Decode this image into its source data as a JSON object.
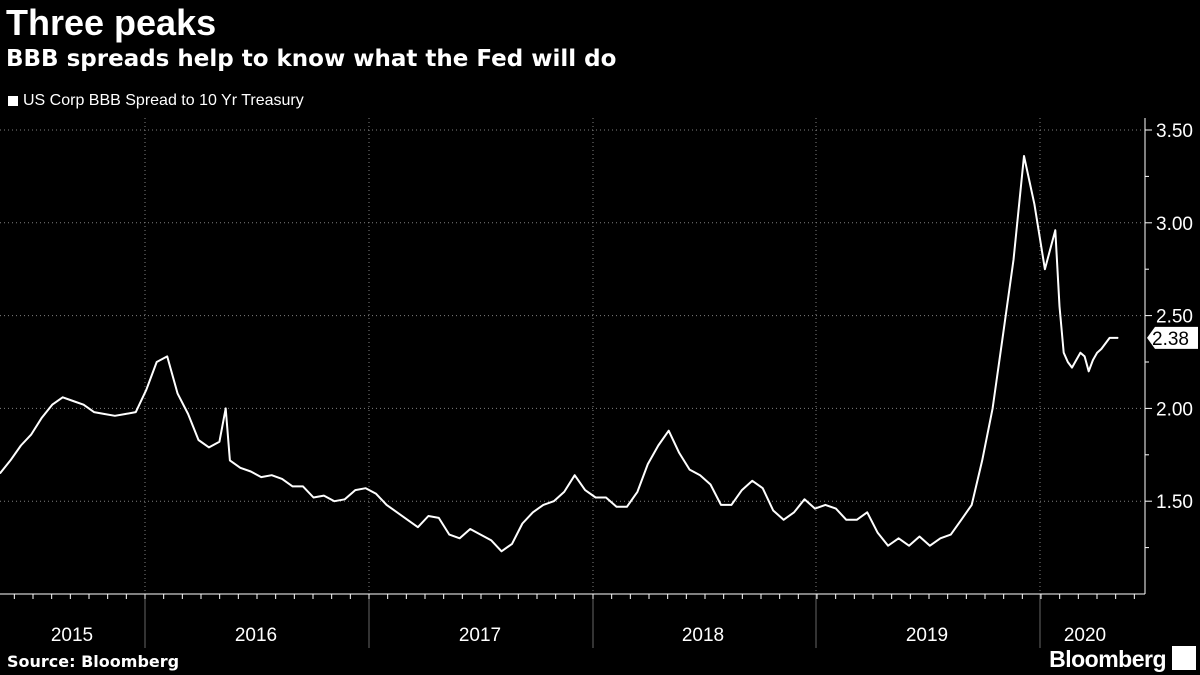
{
  "header": {
    "title": "Three peaks",
    "subtitle": "BBB spreads help to know what the Fed will do"
  },
  "legend": {
    "label": "US Corp BBB Spread to 10 Yr Treasury"
  },
  "footer": {
    "source": "Source: Bloomberg",
    "brand": "Bloomberg"
  },
  "colors": {
    "background": "#000000",
    "line": "#ffffff",
    "grid": "#808080"
  },
  "chart_data": {
    "type": "line",
    "title": "Three peaks",
    "subtitle": "BBB spreads help to know what the Fed will do",
    "xlabel": "",
    "ylabel": "",
    "x_range": [
      2015.0,
      2020.4
    ],
    "ylim": [
      1.0,
      3.55
    ],
    "y_ticks": [
      1.5,
      2.0,
      2.5,
      3.0,
      3.5
    ],
    "y_tick_labels": [
      "1.50",
      "2.00",
      "2.50",
      "3.00",
      "3.50"
    ],
    "x_tick_labels": [
      "2015",
      "2016",
      "2017",
      "2018",
      "2019",
      "2020"
    ],
    "x_tick_positions": [
      2015.5,
      2016.5,
      2017.5,
      2018.5,
      2019.5,
      2020.25
    ],
    "grid": true,
    "legend_position": "top-left",
    "last_value": 2.38,
    "last_value_label": "2.38",
    "series": [
      {
        "name": "US Corp BBB Spread to 10 Yr Treasury",
        "x": [
          2015.0,
          2015.05,
          2015.1,
          2015.15,
          2015.2,
          2015.25,
          2015.3,
          2015.35,
          2015.4,
          2015.45,
          2015.5,
          2015.55,
          2015.6,
          2015.65,
          2015.7,
          2015.75,
          2015.8,
          2015.85,
          2015.9,
          2015.95,
          2016.0,
          2016.05,
          2016.08,
          2016.1,
          2016.15,
          2016.2,
          2016.25,
          2016.3,
          2016.35,
          2016.4,
          2016.45,
          2016.5,
          2016.55,
          2016.6,
          2016.65,
          2016.7,
          2016.75,
          2016.8,
          2016.85,
          2016.9,
          2016.95,
          2017.0,
          2017.05,
          2017.1,
          2017.15,
          2017.2,
          2017.25,
          2017.3,
          2017.35,
          2017.4,
          2017.45,
          2017.5,
          2017.55,
          2017.6,
          2017.65,
          2017.7,
          2017.75,
          2017.8,
          2017.85,
          2017.9,
          2017.95,
          2018.0,
          2018.05,
          2018.1,
          2018.15,
          2018.2,
          2018.25,
          2018.3,
          2018.35,
          2018.4,
          2018.45,
          2018.5,
          2018.55,
          2018.6,
          2018.65,
          2018.7,
          2018.75,
          2018.8,
          2018.85,
          2018.9,
          2018.95,
          2019.0,
          2019.05,
          2019.1,
          2019.15,
          2019.2,
          2019.25,
          2019.3,
          2019.35,
          2019.4,
          2019.45,
          2019.5,
          2019.55,
          2019.6,
          2019.65,
          2019.7,
          2019.75,
          2019.8,
          2019.85,
          2019.9,
          2019.95,
          2020.0,
          2020.05,
          2020.07,
          2020.09,
          2020.11,
          2020.13,
          2020.15,
          2020.17,
          2020.19,
          2020.21,
          2020.23,
          2020.25,
          2020.27,
          2020.29,
          2020.31,
          2020.33,
          2020.35
        ],
        "values": [
          1.65,
          1.72,
          1.8,
          1.86,
          1.95,
          2.02,
          2.06,
          2.04,
          2.02,
          1.98,
          1.97,
          1.96,
          1.97,
          1.98,
          2.1,
          2.25,
          2.28,
          2.08,
          1.97,
          1.83,
          1.79,
          1.82,
          2.0,
          1.72,
          1.68,
          1.66,
          1.63,
          1.64,
          1.62,
          1.58,
          1.58,
          1.52,
          1.53,
          1.5,
          1.51,
          1.56,
          1.57,
          1.54,
          1.48,
          1.44,
          1.4,
          1.36,
          1.42,
          1.41,
          1.32,
          1.3,
          1.35,
          1.32,
          1.29,
          1.23,
          1.27,
          1.38,
          1.44,
          1.48,
          1.5,
          1.55,
          1.64,
          1.56,
          1.52,
          1.52,
          1.47,
          1.47,
          1.55,
          1.7,
          1.8,
          1.88,
          1.76,
          1.67,
          1.64,
          1.59,
          1.48,
          1.48,
          1.56,
          1.61,
          1.57,
          1.45,
          1.4,
          1.44,
          1.51,
          1.46,
          1.48,
          1.46,
          1.4,
          1.4,
          1.44,
          1.33,
          1.26,
          1.3,
          1.26,
          1.31,
          1.26,
          1.3,
          1.32,
          1.4,
          1.48,
          1.72,
          2.0,
          2.4,
          2.8,
          3.36,
          3.1,
          2.75,
          2.96,
          2.55,
          2.3,
          2.25,
          2.22,
          2.26,
          2.3,
          2.28,
          2.2,
          2.26,
          2.3,
          2.32,
          2.35,
          2.38,
          2.38,
          2.38
        ]
      }
    ]
  }
}
